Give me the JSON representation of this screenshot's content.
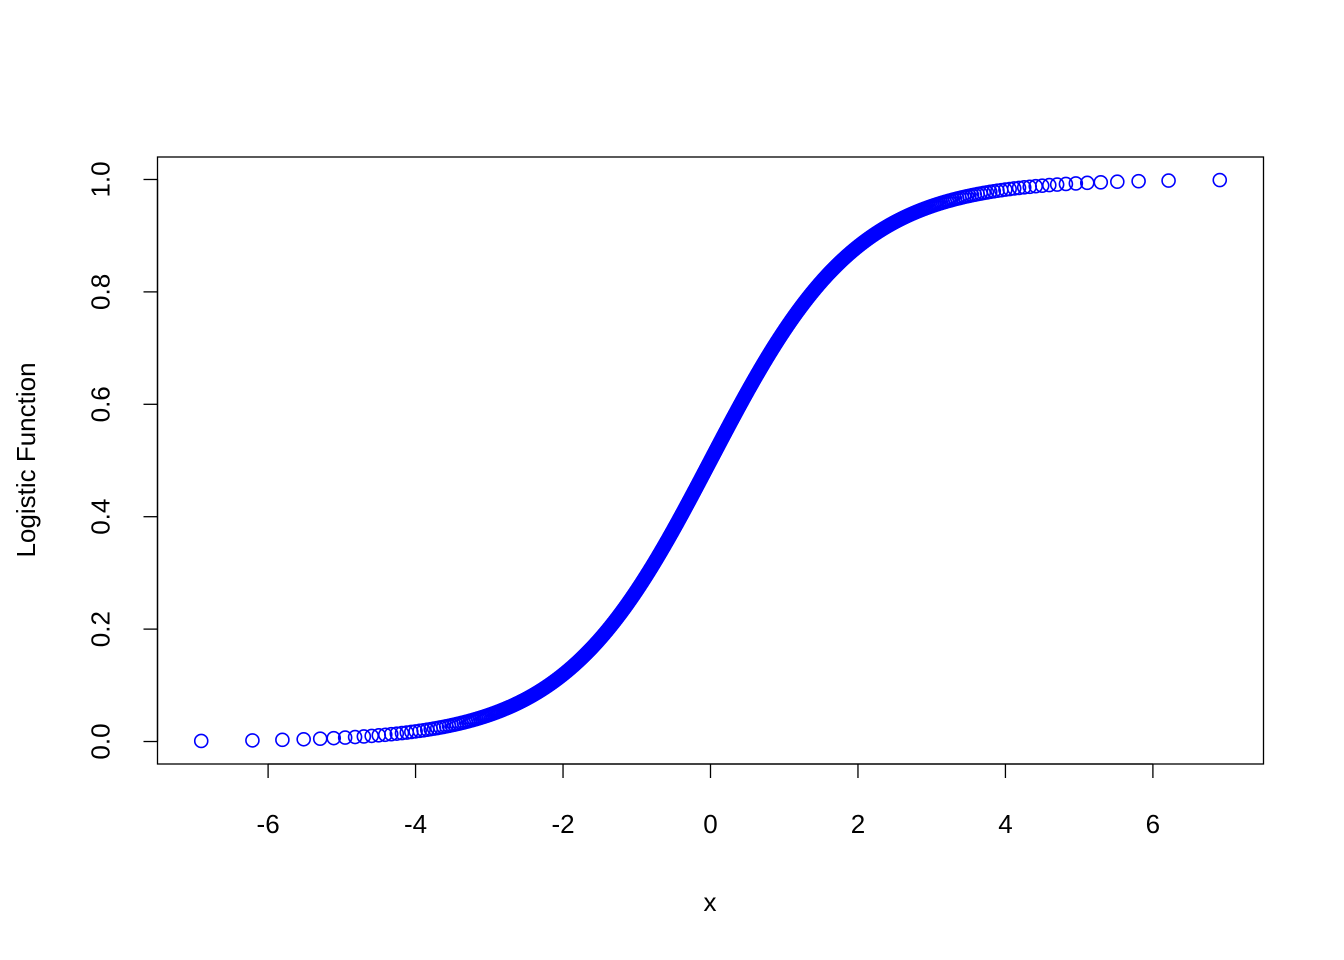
{
  "chart_data": {
    "type": "scatter",
    "title": "",
    "xlabel": "x",
    "ylabel": "Logistic Function",
    "xlim": [
      -7.5,
      7.5
    ],
    "ylim": [
      -0.04,
      1.04
    ],
    "x_ticks": [
      -6,
      -4,
      -2,
      0,
      2,
      4,
      6
    ],
    "x_tick_labels": [
      "-6",
      "-4",
      "-2",
      "0",
      "2",
      "4",
      "6"
    ],
    "y_ticks": [
      0.0,
      0.2,
      0.4,
      0.6,
      0.8,
      1.0
    ],
    "y_tick_labels": [
      "0.0",
      "0.2",
      "0.4",
      "0.6",
      "0.8",
      "1.0"
    ],
    "grid": false,
    "legend": "none",
    "marker": "open-circle",
    "point_color": "#0000ff",
    "series": [
      {
        "function": "logistic",
        "y_start": 0.001,
        "y_end": 0.999,
        "y_step": 0.001
      }
    ]
  }
}
